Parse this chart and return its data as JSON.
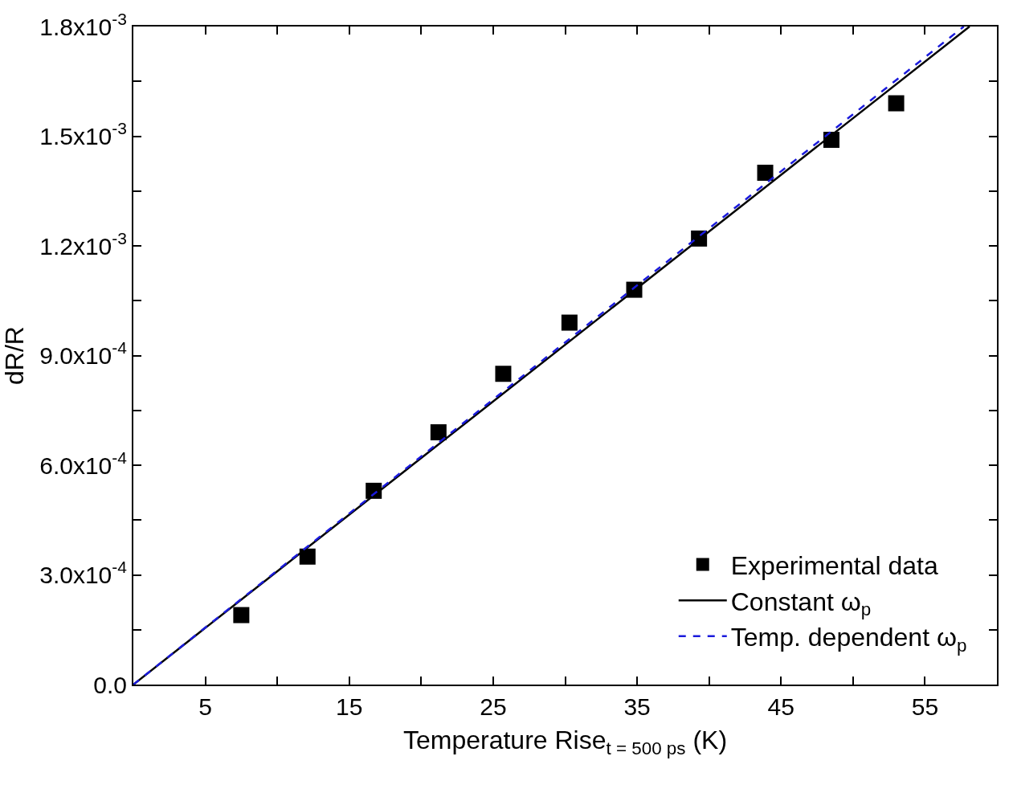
{
  "chart_data": {
    "type": "scatter",
    "xlabel": "Temperature Rise$_{t = 500 ps}$ (K)",
    "ylabel": "dR/R",
    "xlim": [
      0,
      60
    ],
    "ylim": [
      0,
      0.0018
    ],
    "xticks": [
      {
        "value": 5,
        "label": "5"
      },
      {
        "value": 10,
        "label": null
      },
      {
        "value": 15,
        "label": "15"
      },
      {
        "value": 20,
        "label": null
      },
      {
        "value": 25,
        "label": "25"
      },
      {
        "value": 30,
        "label": null
      },
      {
        "value": 35,
        "label": "35"
      },
      {
        "value": 40,
        "label": null
      },
      {
        "value": 45,
        "label": "45"
      },
      {
        "value": 50,
        "label": null
      },
      {
        "value": 55,
        "label": "55"
      }
    ],
    "yticks": [
      {
        "value": 0,
        "label": "0.0"
      },
      {
        "value": 0.00015,
        "label": null
      },
      {
        "value": 0.0003,
        "label": "3.0x10$^{-4}$"
      },
      {
        "value": 0.00045,
        "label": null
      },
      {
        "value": 0.0006,
        "label": "6.0x10$^{-4}$"
      },
      {
        "value": 0.00075,
        "label": null
      },
      {
        "value": 0.0009,
        "label": "9.0x10$^{-4}$"
      },
      {
        "value": 0.00105,
        "label": null
      },
      {
        "value": 0.0012,
        "label": "1.2x10$^{-3}$"
      },
      {
        "value": 0.00135,
        "label": null
      },
      {
        "value": 0.0015,
        "label": "1.5x10$^{-3}$"
      },
      {
        "value": 0.00165,
        "label": null
      },
      {
        "value": 0.0018,
        "label": "1.8x10$^{-3}$"
      }
    ],
    "legend": "bottom right",
    "series": [
      {
        "name": "Experimental data",
        "marker": "square",
        "color": "#000000",
        "x": [
          7.5,
          12.1,
          16.7,
          21.2,
          25.7,
          30.3,
          34.8,
          39.3,
          43.9,
          48.5,
          53.0
        ],
        "values": [
          0.00019,
          0.00035,
          0.00053,
          0.00069,
          0.00085,
          0.00099,
          0.00108,
          0.00122,
          0.0014,
          0.00149,
          0.00159
        ]
      },
      {
        "name": "Constant ω$_{p}$",
        "type": "line",
        "line_style": "solid",
        "color": "#000000",
        "x": [
          0,
          58.1
        ],
        "values": [
          0,
          0.0018
        ]
      },
      {
        "name": "Temp. dependent ω$_{p}$",
        "type": "line",
        "line_style": "dashed",
        "color": "#1a1adc",
        "x": [
          0,
          57.7
        ],
        "values": [
          0,
          0.0018
        ]
      }
    ]
  }
}
